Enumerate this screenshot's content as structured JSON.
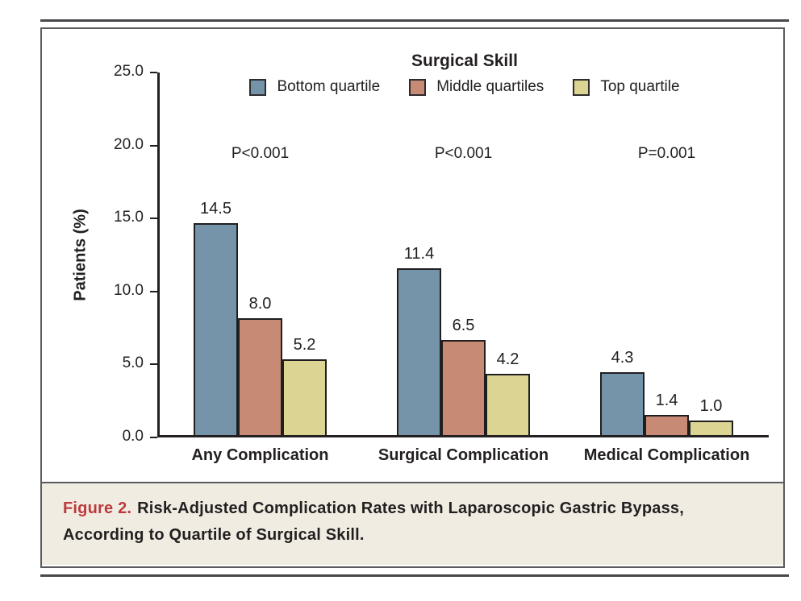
{
  "figure": {
    "caption_label": "Figure 2.",
    "caption_text": "Risk-Adjusted Complication Rates with Laparoscopic Gastric Bypass, According to Quartile of Surgical Skill."
  },
  "chart_data": {
    "type": "bar",
    "title": "Surgical Skill",
    "ylabel": "Patients (%)",
    "xlabel": "",
    "ylim": [
      0,
      25
    ],
    "yticks": [
      25.0,
      20.0,
      15.0,
      10.0,
      5.0,
      0.0
    ],
    "grid": false,
    "legend_position": "top",
    "categories": [
      "Any Complication",
      "Surgical Complication",
      "Medical Complication"
    ],
    "p_values": [
      "P<0.001",
      "P<0.001",
      "P=0.001"
    ],
    "series": [
      {
        "name": "Bottom quartile",
        "color": "#7594a9",
        "values": [
          14.5,
          11.4,
          4.3
        ]
      },
      {
        "name": "Middle quartiles",
        "color": "#c78a75",
        "values": [
          8.0,
          6.5,
          1.4
        ]
      },
      {
        "name": "Top quartile",
        "color": "#dcd492",
        "values": [
          5.2,
          4.2,
          1.0
        ]
      }
    ]
  },
  "colors": {
    "bar_border": "#1f1f1f",
    "axis": "#231f20",
    "text": "#231f20",
    "box_border": "#5a5b5e",
    "page_rule": "#47484b",
    "caption_background": "#f1ece2",
    "caption_accent": "#bb3a3d"
  }
}
